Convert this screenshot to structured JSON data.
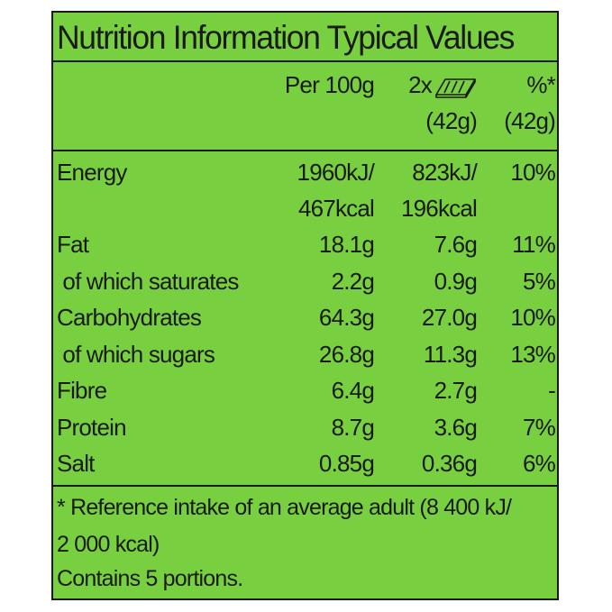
{
  "title": "Nutrition Information Typical Values",
  "headers": {
    "per100": "Per 100g",
    "portion_count": "2x",
    "portion_weight": "(42g)",
    "pct_symbol": "%*",
    "pct_weight": "(42g)"
  },
  "icons": {
    "portion": "snack-bar-icon"
  },
  "rows": [
    {
      "name": "Energy",
      "per100": "1960kJ/",
      "portion": "823kJ/",
      "pct": "10%"
    },
    {
      "name": "",
      "per100": "467kcal",
      "portion": "196kcal",
      "pct": ""
    },
    {
      "name": "Fat",
      "per100": "18.1g",
      "portion": "7.6g",
      "pct": "11%"
    },
    {
      "name": " of which saturates",
      "per100": "2.2g",
      "portion": "0.9g",
      "pct": "5%"
    },
    {
      "name": "Carbohydrates",
      "per100": "64.3g",
      "portion": "27.0g",
      "pct": "10%"
    },
    {
      "name": " of which sugars",
      "per100": "26.8g",
      "portion": "11.3g",
      "pct": "13%"
    },
    {
      "name": "Fibre",
      "per100": "6.4g",
      "portion": "2.7g",
      "pct": "-"
    },
    {
      "name": "Protein",
      "per100": "8.7g",
      "portion": "3.6g",
      "pct": "7%"
    },
    {
      "name": "Salt",
      "per100": "0.85g",
      "portion": "0.36g",
      "pct": "6%"
    }
  ],
  "footnote": {
    "line1": "* Reference intake of an average adult (8 400 kJ/",
    "line2": " 2 000 kcal)",
    "line3": " Contains 5 portions."
  },
  "colors": {
    "background": "#78cf3f",
    "text": "#1a1a1a"
  }
}
